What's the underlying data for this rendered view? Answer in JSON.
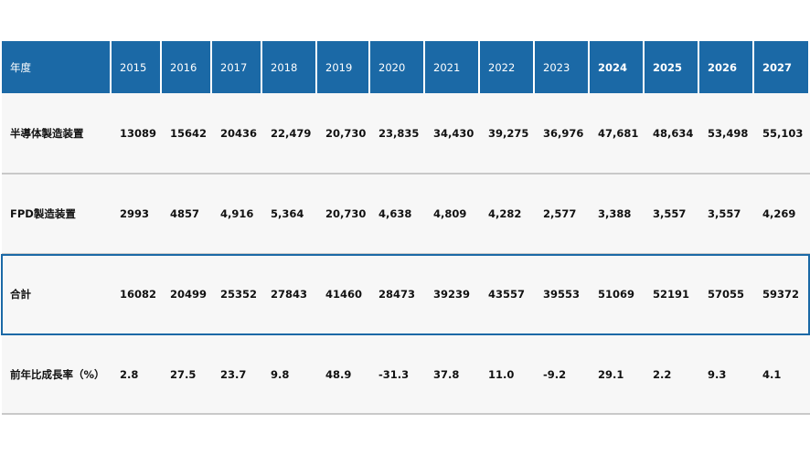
{
  "table": {
    "header": [
      "年度",
      "2015",
      "2016",
      "2017",
      "2018",
      "2019",
      "2020",
      "2021",
      "2022",
      "2023",
      "2024",
      "2025",
      "2026",
      "2027"
    ],
    "rows": [
      [
        "半導体製造装置",
        "13089",
        "15642",
        "20436",
        "22,479",
        "20,730",
        "23,835",
        "34,430",
        "39,275",
        "36,976",
        "47,681",
        "48,634",
        "53,498",
        "55,103"
      ],
      [
        "FPD製造装置",
        "2993",
        "4857",
        "4,916",
        "5,364",
        "20,730",
        "4,638",
        "4,809",
        "4,282",
        "2,577",
        "3,388",
        "3,557",
        "3,557",
        "4,269"
      ],
      [
        "合計",
        "16082",
        "20499",
        "25352",
        "27843",
        "41460",
        "28473",
        "39239",
        "43557",
        "39553",
        "51069",
        "52191",
        "57055",
        "59372"
      ],
      [
        "前年比成長率（%）",
        "2.8",
        "27.5",
        "23.7",
        "9.8",
        "48.9",
        "-31.3",
        "37.8",
        "11.0",
        "-9.2",
        "29.1",
        "2.2",
        "9.3",
        "4.1"
      ]
    ]
  }
}
